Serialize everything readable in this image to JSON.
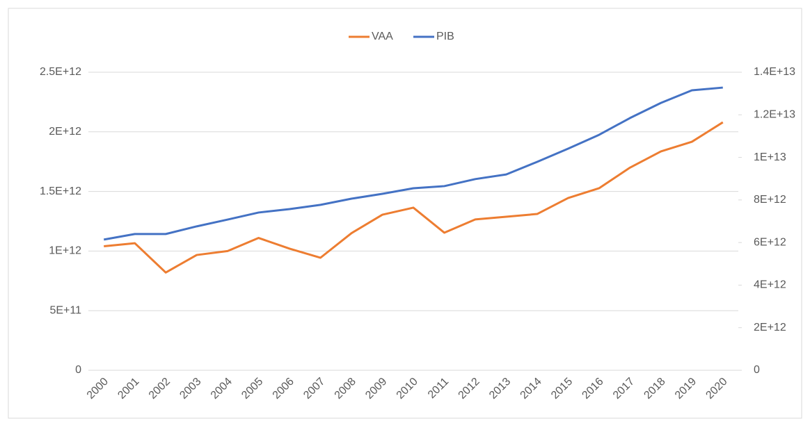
{
  "chart_data": {
    "type": "line",
    "categories": [
      "2000",
      "2001",
      "2002",
      "2003",
      "2004",
      "2005",
      "2006",
      "2007",
      "2008",
      "2009",
      "2010",
      "2011",
      "2012",
      "2013",
      "2014",
      "2015",
      "2016",
      "2017",
      "2018",
      "2019",
      "2020"
    ],
    "series": [
      {
        "name": "VAA",
        "color": "#ed7d31",
        "values": [
          1040000000000.0,
          1066000000000.0,
          820000000000.0,
          967000000000.0,
          1000000000000.0,
          1110000000000.0,
          1020000000000.0,
          944000000000.0,
          1150000000000.0,
          1305000000000.0,
          1364000000000.0,
          1154000000000.0,
          1265000000000.0,
          1288000000000.0,
          1311000000000.0,
          1445000000000.0,
          1527000000000.0,
          1700000000000.0,
          1836000000000.0,
          1917000000000.0,
          2080000000000.0
        ]
      },
      {
        "name": "PIB",
        "color": "#4472c4",
        "axis": "y2",
        "values": [
          6140000000000.0,
          6400000000000.0,
          6400000000000.0,
          6760000000000.0,
          7080000000000.0,
          7410000000000.0,
          7570000000000.0,
          7770000000000.0,
          8060000000000.0,
          8290000000000.0,
          8550000000000.0,
          8650000000000.0,
          8980000000000.0,
          9200000000000.0,
          9790000000000.0,
          10410000000000.0,
          11060000000000.0,
          11850000000000.0,
          12560000000000.0,
          13150000000000.0,
          13280000000000.0
        ]
      }
    ],
    "ylim": [
      0,
      2500000000000.0
    ],
    "yticks": [
      0,
      {
        "value": 500000000000.0,
        "label": "5E+11"
      },
      {
        "value": 1000000000000.0,
        "label": "1E+12"
      },
      {
        "value": 1500000000000.0,
        "label": "1.5E+12"
      },
      {
        "value": 2000000000000.0,
        "label": "2E+12"
      },
      {
        "value": 2500000000000.0,
        "label": "2.5E+12"
      }
    ],
    "y2lim": [
      0,
      14000000000000.0
    ],
    "y2ticks": [
      0,
      {
        "value": 2000000000000.0,
        "label": "2E+12"
      },
      {
        "value": 4000000000000.0,
        "label": "4E+12"
      },
      {
        "value": 6000000000000.0,
        "label": "6E+12"
      },
      {
        "value": 8000000000000.0,
        "label": "8E+12"
      },
      {
        "value": 10000000000000.0,
        "label": "1E+13"
      },
      {
        "value": 12000000000000.0,
        "label": "1.2E+13"
      },
      {
        "value": 14000000000000.0,
        "label": "1.4E+13"
      }
    ],
    "grid": true,
    "legend": "top"
  }
}
